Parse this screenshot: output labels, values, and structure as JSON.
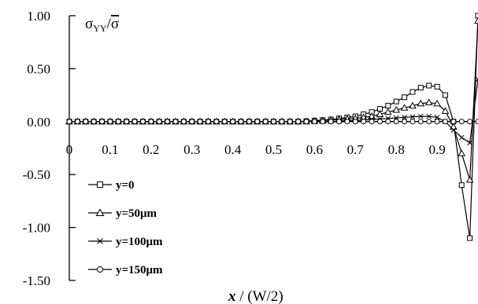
{
  "chart_data": {
    "type": "line",
    "title": "σYY/ σ̄",
    "title_parts": {
      "sigma": "σ",
      "subscript": "YY",
      "slash": "/",
      "sigma_bar": "σ"
    },
    "xlabel": "x / (W/2)",
    "xlabel_parts": {
      "var": "x",
      "rest": " / (W/2)"
    },
    "ylabel": "",
    "xlim": [
      0,
      1.0
    ],
    "ylim": [
      -1.5,
      1.0
    ],
    "x_ticks": [
      "0",
      "0.1",
      "0.2",
      "0.3",
      "0.4",
      "0.5",
      "0.6",
      "0.7",
      "0.8",
      "0.9"
    ],
    "y_ticks": [
      "1.00",
      "0.50",
      "0.00",
      "-0.50",
      "-1.00",
      "-1.50"
    ],
    "grid": false,
    "legend_position": "bottom-left",
    "series": [
      {
        "name": "y=0",
        "marker": "square",
        "x": [
          0,
          0.02,
          0.04,
          0.06,
          0.08,
          0.1,
          0.12,
          0.14,
          0.16,
          0.18,
          0.2,
          0.22,
          0.24,
          0.26,
          0.28,
          0.3,
          0.32,
          0.34,
          0.36,
          0.38,
          0.4,
          0.42,
          0.44,
          0.46,
          0.48,
          0.5,
          0.52,
          0.54,
          0.56,
          0.58,
          0.6,
          0.62,
          0.64,
          0.66,
          0.68,
          0.7,
          0.72,
          0.74,
          0.76,
          0.78,
          0.8,
          0.82,
          0.84,
          0.86,
          0.88,
          0.9,
          0.92,
          0.94,
          0.96,
          0.98,
          1.0
        ],
        "y": [
          0,
          0,
          0,
          0,
          0,
          0,
          0,
          0,
          0,
          0,
          0,
          0,
          0,
          0,
          0,
          0,
          0,
          0,
          0,
          0,
          0,
          0,
          0,
          0,
          0,
          0,
          0,
          0,
          0,
          0.005,
          0.01,
          0.015,
          0.02,
          0.03,
          0.04,
          0.05,
          0.07,
          0.09,
          0.12,
          0.15,
          0.19,
          0.23,
          0.28,
          0.32,
          0.34,
          0.33,
          0.25,
          0.0,
          -0.6,
          -1.1,
          1.0
        ]
      },
      {
        "name": "y=50μm",
        "marker": "triangle",
        "x": [
          0,
          0.02,
          0.04,
          0.06,
          0.08,
          0.1,
          0.12,
          0.14,
          0.16,
          0.18,
          0.2,
          0.22,
          0.24,
          0.26,
          0.28,
          0.3,
          0.32,
          0.34,
          0.36,
          0.38,
          0.4,
          0.42,
          0.44,
          0.46,
          0.48,
          0.5,
          0.52,
          0.54,
          0.56,
          0.58,
          0.6,
          0.62,
          0.64,
          0.66,
          0.68,
          0.7,
          0.72,
          0.74,
          0.76,
          0.78,
          0.8,
          0.82,
          0.84,
          0.86,
          0.88,
          0.9,
          0.92,
          0.94,
          0.96,
          0.98,
          1.0
        ],
        "y": [
          0,
          0,
          0,
          0,
          0,
          0,
          0,
          0,
          0,
          0,
          0,
          0,
          0,
          0,
          0,
          0,
          0,
          0,
          0,
          0,
          0,
          0,
          0,
          0,
          0,
          0,
          0,
          0,
          0,
          0,
          0.005,
          0.01,
          0.015,
          0.02,
          0.025,
          0.03,
          0.04,
          0.05,
          0.07,
          0.09,
          0.11,
          0.13,
          0.15,
          0.17,
          0.18,
          0.17,
          0.1,
          -0.05,
          -0.3,
          -0.55,
          0.95
        ]
      },
      {
        "name": "y=100μm",
        "marker": "cross",
        "x": [
          0,
          0.02,
          0.04,
          0.06,
          0.08,
          0.1,
          0.12,
          0.14,
          0.16,
          0.18,
          0.2,
          0.22,
          0.24,
          0.26,
          0.28,
          0.3,
          0.32,
          0.34,
          0.36,
          0.38,
          0.4,
          0.42,
          0.44,
          0.46,
          0.48,
          0.5,
          0.52,
          0.54,
          0.56,
          0.58,
          0.6,
          0.62,
          0.64,
          0.66,
          0.68,
          0.7,
          0.72,
          0.74,
          0.76,
          0.78,
          0.8,
          0.82,
          0.84,
          0.86,
          0.88,
          0.9,
          0.92,
          0.94,
          0.96,
          0.98,
          1.0
        ],
        "y": [
          0,
          0,
          0,
          0,
          0,
          0,
          0,
          0,
          0,
          0,
          0,
          0,
          0,
          0,
          0,
          0,
          0,
          0,
          0,
          0,
          0,
          0,
          0,
          0,
          0,
          0,
          0,
          0,
          0,
          0,
          0,
          0,
          0,
          0.005,
          0.01,
          0.01,
          0.015,
          0.02,
          0.025,
          0.03,
          0.035,
          0.04,
          0.045,
          0.05,
          0.05,
          0.04,
          0.0,
          -0.08,
          -0.15,
          -0.2,
          0.4
        ]
      },
      {
        "name": "y=150μm",
        "marker": "circle",
        "x": [
          0,
          0.02,
          0.04,
          0.06,
          0.08,
          0.1,
          0.12,
          0.14,
          0.16,
          0.18,
          0.2,
          0.22,
          0.24,
          0.26,
          0.28,
          0.3,
          0.32,
          0.34,
          0.36,
          0.38,
          0.4,
          0.42,
          0.44,
          0.46,
          0.48,
          0.5,
          0.52,
          0.54,
          0.56,
          0.58,
          0.6,
          0.62,
          0.64,
          0.66,
          0.68,
          0.7,
          0.72,
          0.74,
          0.76,
          0.78,
          0.8,
          0.82,
          0.84,
          0.86,
          0.88,
          0.9,
          0.92,
          0.94,
          0.96,
          0.98,
          1.0
        ],
        "y": [
          0,
          0,
          0,
          0,
          0,
          0,
          0,
          0,
          0,
          0,
          0,
          0,
          0,
          0,
          0,
          0,
          0,
          0,
          0,
          0,
          0,
          0,
          0,
          0,
          0,
          0,
          0,
          0,
          0,
          0,
          0,
          0,
          0,
          0,
          0,
          0,
          0,
          0,
          0,
          0,
          0,
          0,
          0,
          0,
          0,
          0,
          0,
          0,
          0,
          0,
          0
        ]
      }
    ]
  }
}
